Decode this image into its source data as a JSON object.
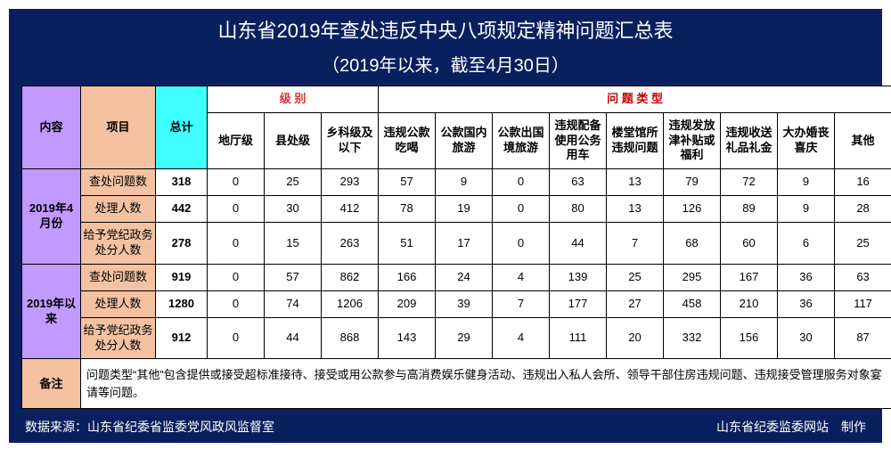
{
  "title": "山东省2019年查处违反中央八项规定精神问题汇总表",
  "subtitle": "（2019年以来，截至4月30日）",
  "headers": {
    "content": "内容",
    "project": "项目",
    "total": "总计",
    "level_group": "级 别",
    "type_group": "问 题 类 型",
    "levels": [
      "地厅级",
      "县处级",
      "乡科级及以下"
    ],
    "types": [
      "违规公款吃喝",
      "公款国内旅游",
      "公款出国境旅游",
      "违规配备使用公务用车",
      "楼堂馆所违规问题",
      "违规发放津补贴或福利",
      "违规收送礼品礼金",
      "大办婚丧喜庆",
      "其他"
    ]
  },
  "periods": [
    {
      "label": "2019年4月份",
      "rows": [
        {
          "project": "查处问题数",
          "total": "318",
          "cells": [
            "0",
            "25",
            "293",
            "57",
            "9",
            "0",
            "63",
            "13",
            "79",
            "72",
            "9",
            "16"
          ]
        },
        {
          "project": "处理人数",
          "total": "442",
          "cells": [
            "0",
            "30",
            "412",
            "78",
            "19",
            "0",
            "80",
            "13",
            "126",
            "89",
            "9",
            "28"
          ]
        },
        {
          "project": "给予党纪政务处分人数",
          "total": "278",
          "cells": [
            "0",
            "15",
            "263",
            "51",
            "17",
            "0",
            "44",
            "7",
            "68",
            "60",
            "6",
            "25"
          ]
        }
      ]
    },
    {
      "label": "2019年以来",
      "rows": [
        {
          "project": "查处问题数",
          "total": "919",
          "cells": [
            "0",
            "57",
            "862",
            "166",
            "24",
            "4",
            "139",
            "25",
            "295",
            "167",
            "36",
            "63"
          ]
        },
        {
          "project": "处理人数",
          "total": "1280",
          "cells": [
            "0",
            "74",
            "1206",
            "209",
            "39",
            "7",
            "177",
            "27",
            "458",
            "210",
            "36",
            "117"
          ]
        },
        {
          "project": "给予党纪政务处分人数",
          "total": "912",
          "cells": [
            "0",
            "44",
            "868",
            "143",
            "29",
            "4",
            "111",
            "20",
            "332",
            "156",
            "30",
            "87"
          ]
        }
      ]
    }
  ],
  "note": {
    "label": "备注",
    "text": "问题类型“其他”包含提供或接受超标准接待、接受或用公款参与高消费娱乐健身活动、违规出入私人会所、领导干部住房违规问题、违规接受管理服务对象宴请等问题。"
  },
  "footer": {
    "left": "数据来源：山东省纪委省监委党风政风监督室",
    "right": "山东省纪委监委网站　制作"
  },
  "style": {
    "bg_frame": "#0a1f5e",
    "bg_content": "#c299ff",
    "bg_project": "#f4c2a1",
    "bg_total": "#40ffff",
    "level_color": "#e03030",
    "type_color": "#c00000",
    "border": "#000000",
    "title_color": "#ffffff",
    "title_fontsize": 22,
    "cell_fontsize": 13,
    "col_widths": {
      "content": 66,
      "project": 84,
      "total": 58,
      "data": 64
    }
  }
}
